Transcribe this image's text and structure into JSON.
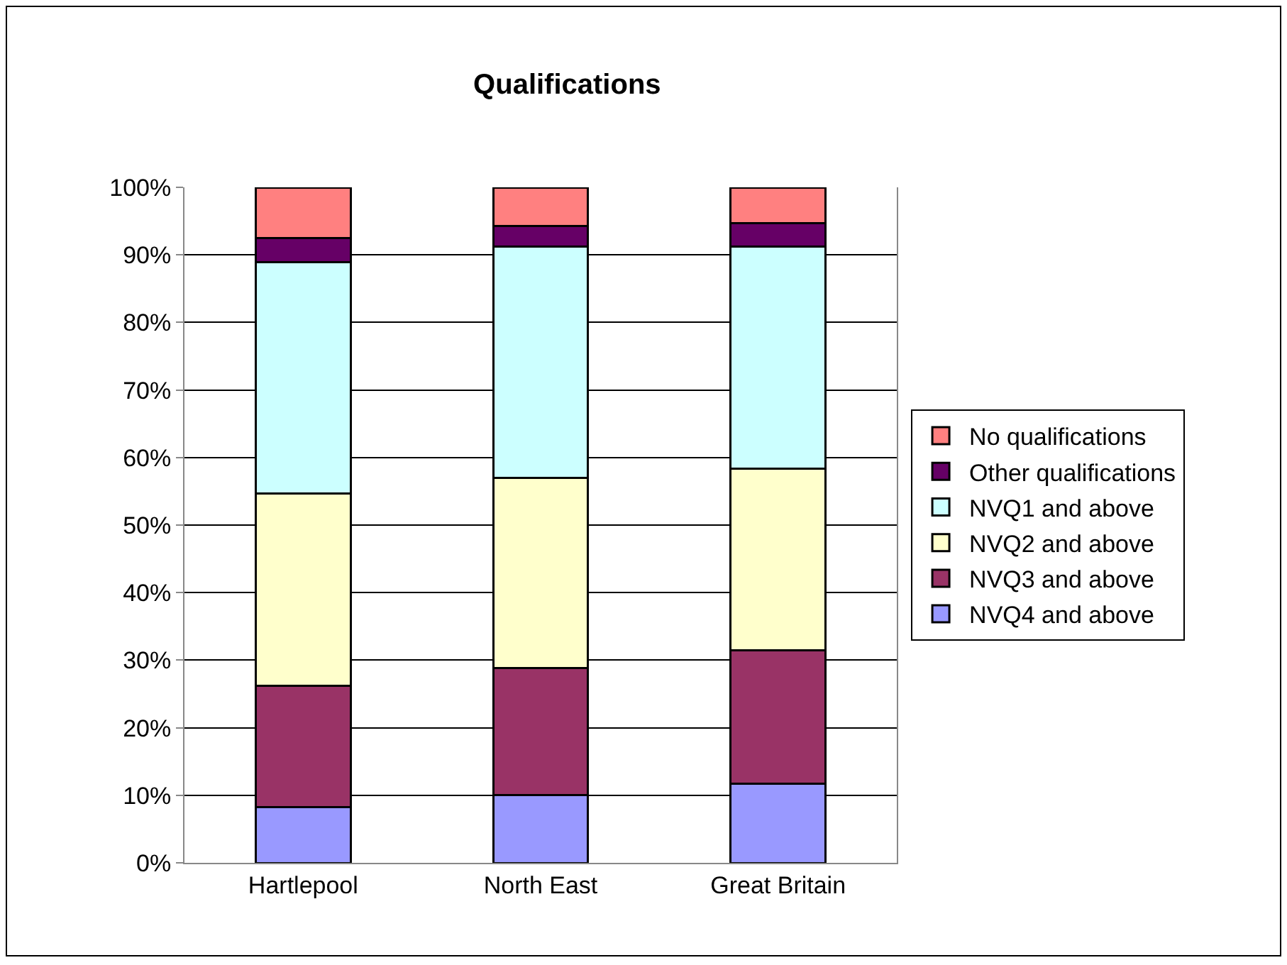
{
  "chart_data": {
    "type": "bar",
    "title": "Qualifications",
    "stacked": true,
    "categories": [
      "Hartlepool",
      "North East",
      "Great Britain"
    ],
    "series": [
      {
        "name": "NVQ4 and above",
        "color": "#9999ff",
        "values": [
          8.2,
          10.0,
          11.7
        ]
      },
      {
        "name": "NVQ3 and above",
        "color": "#993366",
        "values": [
          18.0,
          18.8,
          19.8
        ]
      },
      {
        "name": "NVQ2 and above",
        "color": "#ffffcc",
        "values": [
          28.5,
          28.2,
          26.8
        ]
      },
      {
        "name": "NVQ1 and above",
        "color": "#ccffff",
        "values": [
          34.2,
          34.2,
          32.9
        ]
      },
      {
        "name": "Other qualifications",
        "color": "#660066",
        "values": [
          3.6,
          3.1,
          3.5
        ]
      },
      {
        "name": "No qualifications",
        "color": "#ff8080",
        "values": [
          7.5,
          5.7,
          5.3
        ]
      }
    ],
    "ylim": [
      0,
      100
    ],
    "yticks": [
      {
        "value": 0,
        "label": "0%"
      },
      {
        "value": 10,
        "label": "10%"
      },
      {
        "value": 20,
        "label": "20%"
      },
      {
        "value": 30,
        "label": "30%"
      },
      {
        "value": 40,
        "label": "40%"
      },
      {
        "value": 50,
        "label": "50%"
      },
      {
        "value": 60,
        "label": "60%"
      },
      {
        "value": 70,
        "label": "70%"
      },
      {
        "value": 80,
        "label": "80%"
      },
      {
        "value": 90,
        "label": "90%"
      },
      {
        "value": 100,
        "label": "100%"
      }
    ],
    "grid": "y",
    "legend": "right"
  }
}
